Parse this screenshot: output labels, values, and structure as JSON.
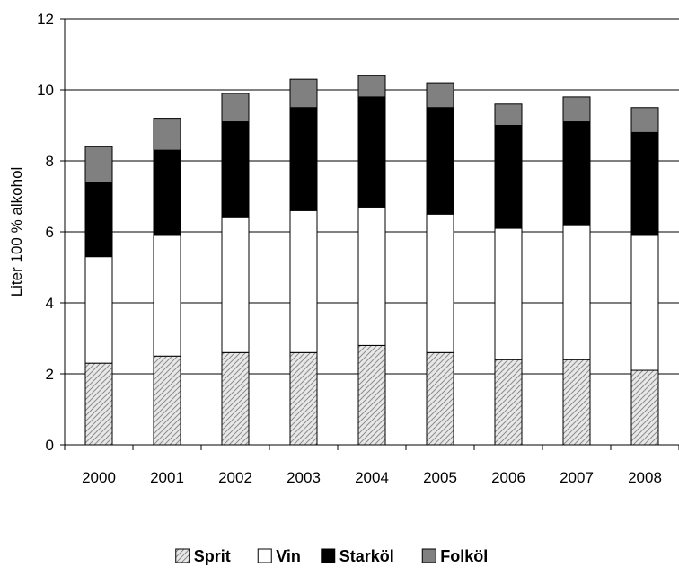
{
  "chart_data": {
    "type": "bar",
    "stacked": true,
    "categories": [
      "2000",
      "2001",
      "2002",
      "2003",
      "2004",
      "2005",
      "2006",
      "2007",
      "2008"
    ],
    "series": [
      {
        "name": "Sprit",
        "values": [
          2.3,
          2.5,
          2.6,
          2.6,
          2.8,
          2.6,
          2.4,
          2.4,
          2.1
        ],
        "fill": "hatch",
        "color": "#bfbfbf"
      },
      {
        "name": "Vin",
        "values": [
          3.0,
          3.4,
          3.8,
          4.0,
          3.9,
          3.9,
          3.7,
          3.8,
          3.8
        ],
        "fill": "solid",
        "color": "#ffffff"
      },
      {
        "name": "Starköl",
        "values": [
          2.1,
          2.4,
          2.7,
          2.9,
          3.1,
          3.0,
          2.9,
          2.9,
          2.9
        ],
        "fill": "solid",
        "color": "#000000"
      },
      {
        "name": "Folköl",
        "values": [
          1.0,
          0.9,
          0.8,
          0.8,
          0.6,
          0.7,
          0.6,
          0.7,
          0.7
        ],
        "fill": "solid",
        "color": "#808080"
      }
    ],
    "ylabel": "Liter 100 % alkohol",
    "ylim": [
      0,
      12
    ],
    "yticks": [
      0,
      2,
      4,
      6,
      8,
      10,
      12
    ],
    "grid": true,
    "legend": "bottom"
  }
}
